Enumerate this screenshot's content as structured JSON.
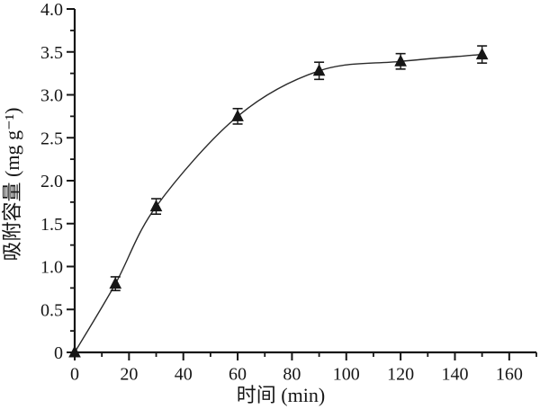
{
  "figure": {
    "background": "#ffffff",
    "ink_color": "#161616",
    "curve_color": "#2a2a2a"
  },
  "chart_data": {
    "type": "line",
    "title": "",
    "xlabel": "时间 (min)",
    "ylabel": "吸附容量  (mg g⁻¹)",
    "grid": false,
    "legend": null,
    "axes": {
      "x": {
        "label": "时间 (min)",
        "min": 0,
        "max": 170,
        "major_ticks": [
          0,
          20,
          40,
          60,
          80,
          100,
          120,
          140,
          160
        ],
        "major_labels": [
          "0",
          "20",
          "40",
          "60",
          "80",
          "100",
          "120",
          "140",
          "160"
        ],
        "minor_step": 10
      },
      "y": {
        "label": "吸附容量  (mg g⁻¹)",
        "min": 0,
        "max": 4.0,
        "major_ticks": [
          0,
          0.5,
          1.0,
          1.5,
          2.0,
          2.5,
          3.0,
          3.5,
          4.0
        ],
        "major_labels": [
          "0",
          "0.5",
          "1.0",
          "1.5",
          "2.0",
          "2.5",
          "3.0",
          "3.5",
          "4.0"
        ],
        "minor_step": 0.25
      }
    },
    "series": [
      {
        "name": "adsorption-capacity",
        "marker": "filled-triangle-up",
        "x": [
          0,
          15,
          30,
          60,
          90,
          120,
          150
        ],
        "y": [
          0,
          0.8,
          1.7,
          2.75,
          3.28,
          3.39,
          3.47
        ],
        "yerr": [
          0,
          0.08,
          0.09,
          0.09,
          0.1,
          0.09,
          0.1
        ]
      }
    ]
  }
}
